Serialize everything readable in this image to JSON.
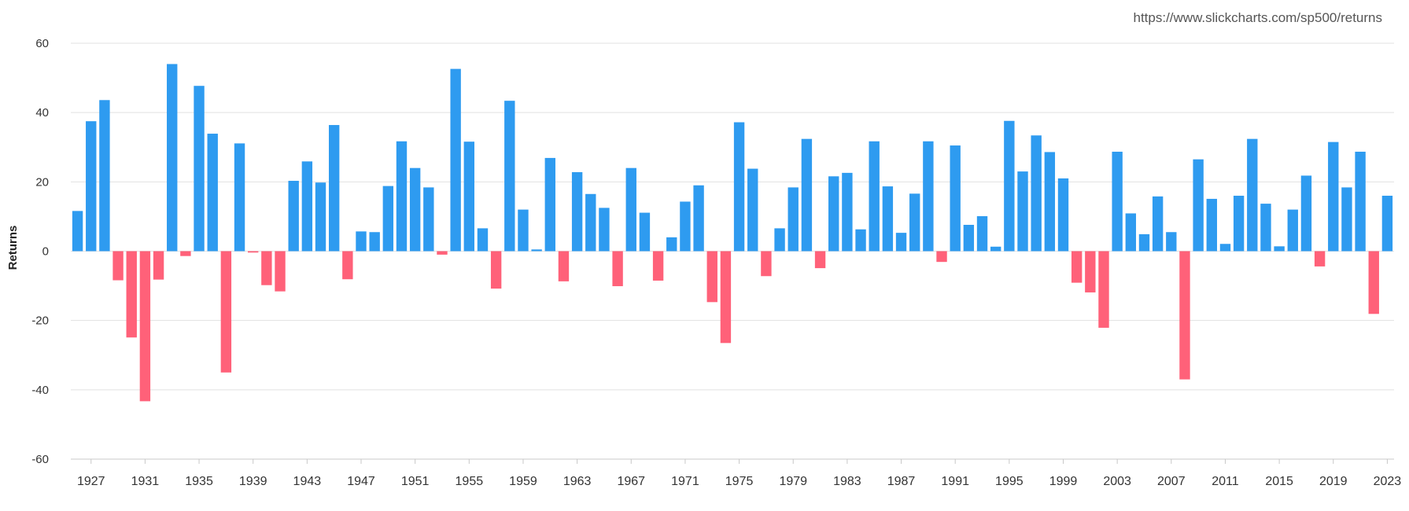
{
  "source_note": "https://www.slickcharts.com/sp500/returns",
  "colors": {
    "positive": "#2e9bf0",
    "negative": "#ff6179",
    "grid": "#e1e1e1",
    "axis": "#c8c8c8"
  },
  "chart_data": {
    "type": "bar",
    "ylabel": "Returns",
    "xlabel": "",
    "ylim": [
      -60,
      60
    ],
    "yticks": [
      60,
      40,
      20,
      0,
      -20,
      -40,
      -60
    ],
    "grid": true,
    "legend": "none",
    "x_tick_labels": [
      "1927",
      "1931",
      "1935",
      "1939",
      "1943",
      "1947",
      "1951",
      "1955",
      "1959",
      "1963",
      "1967",
      "1971",
      "1975",
      "1979",
      "1983",
      "1987",
      "1991",
      "1995",
      "1999",
      "2003",
      "2007",
      "2011",
      "2015",
      "2019",
      "2023"
    ],
    "categories": [
      1926,
      1927,
      1928,
      1929,
      1930,
      1931,
      1932,
      1933,
      1934,
      1935,
      1936,
      1937,
      1938,
      1939,
      1940,
      1941,
      1942,
      1943,
      1944,
      1945,
      1946,
      1947,
      1948,
      1949,
      1950,
      1951,
      1952,
      1953,
      1954,
      1955,
      1956,
      1957,
      1958,
      1959,
      1960,
      1961,
      1962,
      1963,
      1964,
      1965,
      1966,
      1967,
      1968,
      1969,
      1970,
      1971,
      1972,
      1973,
      1974,
      1975,
      1976,
      1977,
      1978,
      1979,
      1980,
      1981,
      1982,
      1983,
      1984,
      1985,
      1986,
      1987,
      1988,
      1989,
      1990,
      1991,
      1992,
      1993,
      1994,
      1995,
      1996,
      1997,
      1998,
      1999,
      2000,
      2001,
      2002,
      2003,
      2004,
      2005,
      2006,
      2007,
      2008,
      2009,
      2010,
      2011,
      2012,
      2013,
      2014,
      2015,
      2016,
      2017,
      2018,
      2019,
      2020,
      2021,
      2022,
      2023
    ],
    "values": [
      11.6,
      37.5,
      43.6,
      -8.4,
      -24.9,
      -43.3,
      -8.2,
      54.0,
      -1.4,
      47.7,
      33.9,
      -35.0,
      31.1,
      -0.4,
      -9.8,
      -11.6,
      20.3,
      25.9,
      19.8,
      36.4,
      -8.1,
      5.7,
      5.5,
      18.8,
      31.7,
      24.0,
      18.4,
      -1.0,
      52.6,
      31.6,
      6.6,
      -10.8,
      43.4,
      12.0,
      0.5,
      26.9,
      -8.7,
      22.8,
      16.5,
      12.5,
      -10.1,
      24.0,
      11.1,
      -8.5,
      4.0,
      14.3,
      19.0,
      -14.7,
      -26.5,
      37.2,
      23.8,
      -7.2,
      6.6,
      18.4,
      32.4,
      -4.9,
      21.6,
      22.6,
      6.3,
      31.7,
      18.7,
      5.3,
      16.6,
      31.7,
      -3.1,
      30.5,
      7.6,
      10.1,
      1.3,
      37.6,
      23.0,
      33.4,
      28.6,
      21.0,
      -9.1,
      -11.9,
      -22.1,
      28.7,
      10.9,
      4.9,
      15.8,
      5.5,
      -37.0,
      26.5,
      15.1,
      2.1,
      16.0,
      32.4,
      13.7,
      1.4,
      12.0,
      21.8,
      -4.4,
      31.5,
      18.4,
      28.7,
      -18.1,
      16.0
    ]
  }
}
